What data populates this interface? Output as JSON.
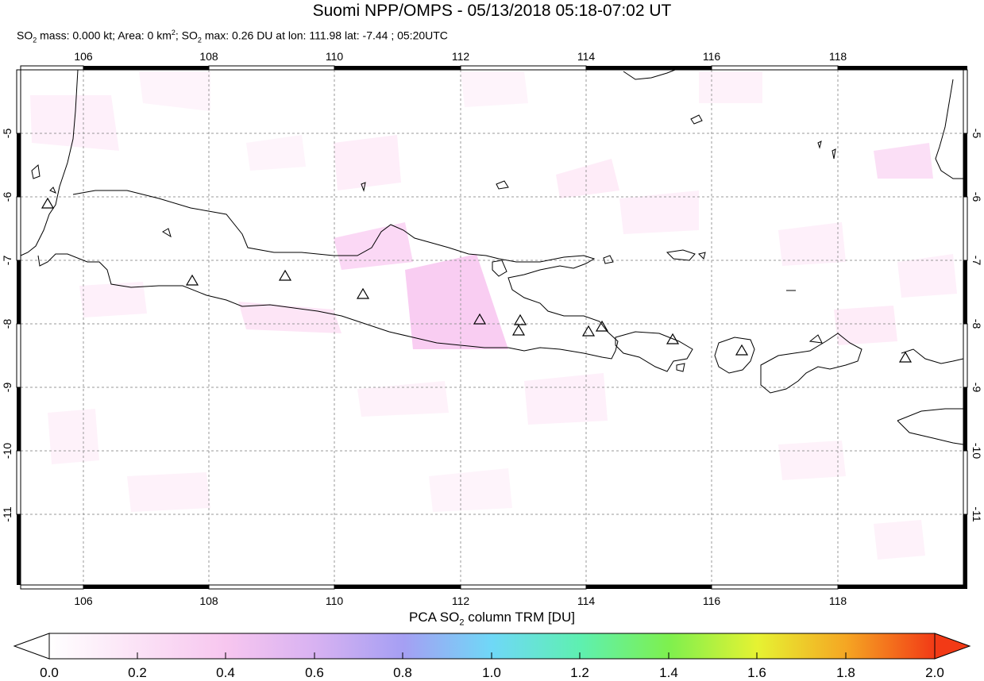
{
  "title": "Suomi NPP/OMPS - 05/13/2018 05:18-07:02 UT",
  "subtitle": {
    "p1": "SO",
    "s1": "2",
    "p2": " mass: 0.000 kt; Area: 0 km",
    "s2": "2",
    "p3": "; SO",
    "s3": "2",
    "p4": " max: 0.26 DU at lon: 111.98 lat: -7.44 ; 05:20UTC"
  },
  "map": {
    "lon_ticks": [
      "106",
      "108",
      "110",
      "112",
      "114",
      "116",
      "118"
    ],
    "lat_ticks": [
      "-5",
      "-6",
      "-7",
      "-8",
      "-9",
      "-10",
      "-11"
    ],
    "lon_range": [
      105,
      120
    ],
    "lat_range": [
      -12,
      -4
    ],
    "grid": true,
    "volcano_marker": "triangle-icon"
  },
  "colorbar": {
    "label_p1": "PCA SO",
    "label_sub": "2",
    "label_p2": " column TRM [DU]",
    "ticks": [
      "0.0",
      "0.2",
      "0.4",
      "0.6",
      "0.8",
      "1.0",
      "1.2",
      "1.4",
      "1.6",
      "1.8",
      "2.0"
    ],
    "range": [
      0.0,
      2.0
    ],
    "colors": [
      "#ffffff",
      "#f7c6ef",
      "#b59cf0",
      "#6fb4f7",
      "#5ff5ef",
      "#5ef08e",
      "#a9f23c",
      "#f2f230",
      "#f5a623",
      "#f23a16"
    ]
  }
}
